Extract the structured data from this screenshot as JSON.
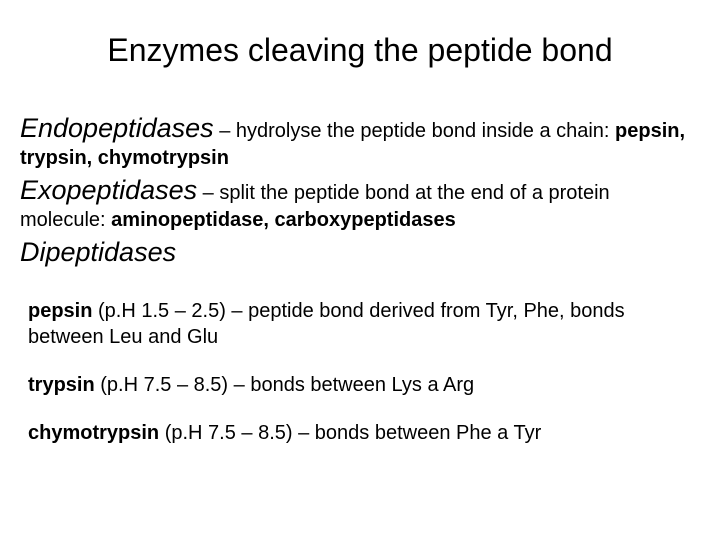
{
  "title": "Enzymes cleaving the peptide bond",
  "sections": {
    "endo": {
      "term": "Endopeptidases",
      "def_pre": " – hydrolyse the peptide bond inside a chain: ",
      "def_bold": "pepsin, trypsin, chymotrypsin"
    },
    "exo": {
      "term": "Exopeptidases",
      "def_pre": " – split the peptide bond at the end of a protein molecule: ",
      "def_bold": "aminopeptidase, carboxypeptidases"
    },
    "di": {
      "term": "Dipeptidases"
    }
  },
  "notes": {
    "pepsin": {
      "bold": "pepsin",
      "rest": " (p.H 1.5 – 2.5) – peptide bond derived from Tyr, Phe, bonds between Leu and Glu"
    },
    "trypsin": {
      "bold": "trypsin",
      "rest": " (p.H 7.5 – 8.5) – bonds between  Lys a Arg"
    },
    "chymo": {
      "bold": "chymotrypsin",
      "rest": " (p.H 7.5 – 8.5) – bonds between  Phe a Tyr"
    }
  },
  "style": {
    "title_fontsize": 32,
    "term_fontsize": 27,
    "body_fontsize": 20,
    "background": "#ffffff",
    "text_color": "#000000",
    "font_family": "Arial"
  }
}
